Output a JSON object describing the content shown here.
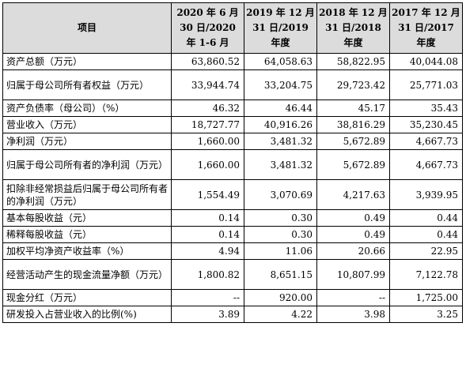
{
  "header": {
    "item": "项目",
    "periods": [
      [
        "2020 年 6 月",
        "30 日/2020",
        "年 1-6 月"
      ],
      [
        "2019 年 12 月",
        "31 日/2019",
        "年度"
      ],
      [
        "2018 年 12 月",
        "31 日/2018",
        "年度"
      ],
      [
        "2017 年 12 月",
        "31 日/2017",
        "年度"
      ]
    ]
  },
  "rows": [
    {
      "label": "资产总额（万元）",
      "values": [
        "63,860.52",
        "64,058.63",
        "58,822.95",
        "40,044.08"
      ]
    },
    {
      "label": "归属于母公司所有者权益（万元）",
      "values": [
        "33,944.74",
        "33,204.75",
        "29,723.42",
        "25,771.03"
      ]
    },
    {
      "label": "资产负债率（母公司）（%）",
      "values": [
        "46.32",
        "46.44",
        "45.17",
        "35.43"
      ]
    },
    {
      "label": "营业收入（万元）",
      "values": [
        "18,727.77",
        "40,916.26",
        "38,816.29",
        "35,230.45"
      ]
    },
    {
      "label": "净利润（万元）",
      "values": [
        "1,660.00",
        "3,481.32",
        "5,672.89",
        "4,667.73"
      ]
    },
    {
      "label": "归属于母公司所有者的净利润（万元）",
      "values": [
        "1,660.00",
        "3,481.32",
        "5,672.89",
        "4,667.73"
      ]
    },
    {
      "label": "扣除非经常损益后归属于母公司所有者的净利润（万元）",
      "values": [
        "1,554.49",
        "3,070.69",
        "4,217.63",
        "3,939.95"
      ]
    },
    {
      "label": "基本每股收益（元）",
      "values": [
        "0.14",
        "0.30",
        "0.49",
        "0.44"
      ]
    },
    {
      "label": "稀释每股收益（元）",
      "values": [
        "0.14",
        "0.30",
        "0.49",
        "0.44"
      ]
    },
    {
      "label": "加权平均净资产收益率（%）",
      "values": [
        "4.94",
        "11.06",
        "20.66",
        "22.95"
      ]
    },
    {
      "label": "经营活动产生的现金流量净额（万元）",
      "values": [
        "1,800.82",
        "8,651.15",
        "10,807.99",
        "7,122.78"
      ]
    },
    {
      "label": "现金分红（万元）",
      "values": [
        "--",
        "920.00",
        "--",
        "1,725.00"
      ]
    },
    {
      "label": "研发投入占营业收入的比例(%)",
      "values": [
        "3.89",
        "4.22",
        "3.98",
        "3.25"
      ]
    }
  ]
}
